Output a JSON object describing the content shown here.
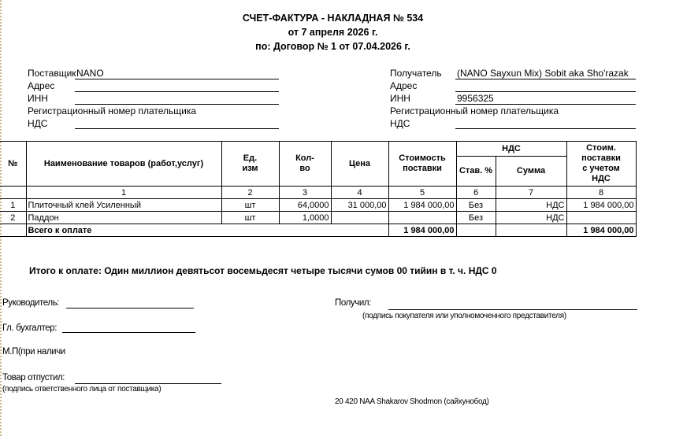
{
  "header": {
    "title": "СЧЕТ-ФАКТУРА - НАКЛАДНАЯ № 534",
    "date": "от 7 апреля 2026 г.",
    "contract": "по: Договор № 1 от 07.04.2026 г."
  },
  "supplier": {
    "label": "Поставщик",
    "value": "NANO",
    "address_label": "Адрес",
    "inn_label": "ИНН",
    "reg_label": "Регистрационный номер плательщика",
    "nds_label": "НДС"
  },
  "recipient": {
    "label": "Получатель",
    "value": "(NANO Sayxun Mix) Sobit aka Sho'razak",
    "address_label": "Адрес",
    "inn_label": "ИНН",
    "inn_value": "9956325",
    "reg_label": "Регистрационный номер плательщика",
    "nds_label": "НДС"
  },
  "table": {
    "headers": {
      "no": "№",
      "name": "Наименование товаров (работ,услуг)",
      "unit": "Ед. изм",
      "qty": "Кол-во",
      "price": "Цена",
      "cost": "Стоимость поставки",
      "vat": "НДС",
      "vat_rate": "Ставка %",
      "vat_sum": "Сумма",
      "total": "Стоим. поставки с учетом НДС"
    },
    "header_short": {
      "vat_rate": "Став. %"
    },
    "col_numbers": [
      "1",
      "2",
      "3",
      "4",
      "5",
      "6",
      "7",
      "8"
    ],
    "rows": [
      {
        "no": "1",
        "name": "Плиточный клей Усиленный",
        "unit": "шт",
        "qty": "64,0000",
        "price": "31 000,00",
        "cost": "1 984 000,00",
        "vat_rate": "Без",
        "vat_sum": "НДС",
        "total": "1 984 000,00"
      },
      {
        "no": "2",
        "name": "Паддон",
        "unit": "шт",
        "qty": "1,0000",
        "price": "",
        "cost": "",
        "vat_rate": "Без",
        "vat_sum": "НДС",
        "total": ""
      }
    ],
    "total_row": {
      "label": "Всего к оплате",
      "cost": "1 984 000,00",
      "total": "1 984 000,00"
    }
  },
  "summary": "Итого к оплате: Один миллион девятьсот восемьдесят четыре тысячи сумов 00 тийин  в т. ч. НДС 0",
  "signatures": {
    "director": "Руководитель:",
    "accountant": "Гл. бухгалтер:",
    "stamp": "М.П(при наличи",
    "released": "Товар  отпустил:",
    "released_note": "(подпись ответственного лица от поставщика)",
    "received": "Получил:",
    "received_note": "(подпись покупателя или уполномоченного представителя)",
    "footer": "20 420 NAA Shakarov Shodmon (сайхунобод)"
  }
}
